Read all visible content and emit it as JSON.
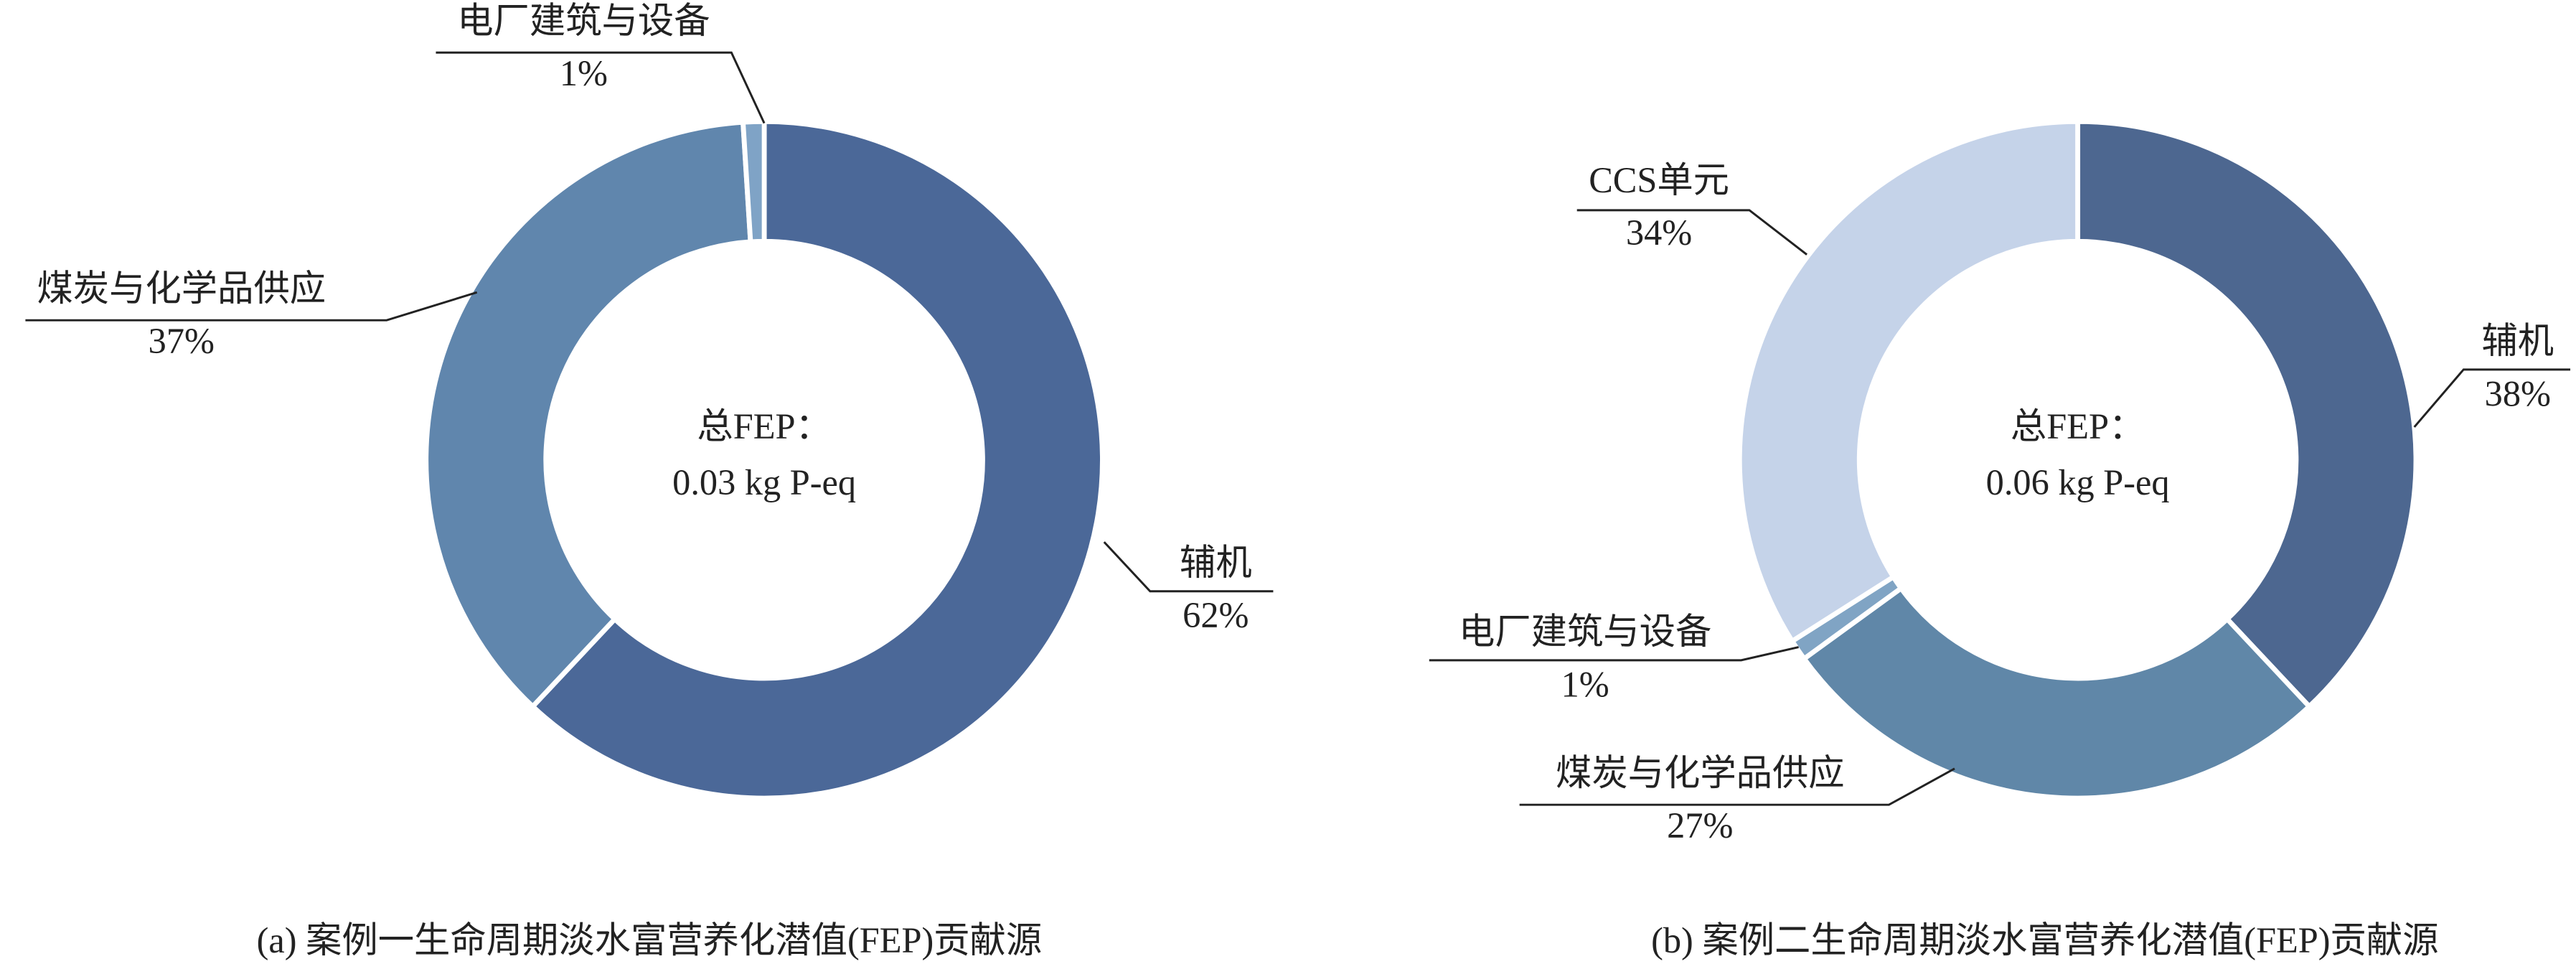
{
  "chart_data": [
    {
      "type": "pie",
      "title": "(a) 案例一生命周期淡水富营养化潜值(FEP)贡献源",
      "center_label": "总FEP：",
      "center_value": "0.03 kg P-eq",
      "categories": [
        "辅机",
        "煤炭与化学品供应",
        "电厂建筑与设备"
      ],
      "values": [
        62,
        37,
        1
      ],
      "value_labels": [
        "62%",
        "37%",
        "1%"
      ],
      "colors": [
        "#4b6898",
        "#6086ad",
        "#7fa3c6"
      ]
    },
    {
      "type": "pie",
      "title": "(b) 案例二生命周期淡水富营养化潜值(FEP)贡献源",
      "center_label": "总FEP：",
      "center_value": "0.06 kg P-eq",
      "categories": [
        "辅机",
        "煤炭与化学品供应",
        "电厂建筑与设备",
        "CCS单元"
      ],
      "values": [
        38,
        27,
        1,
        34
      ],
      "value_labels": [
        "38%",
        "27%",
        "1%",
        "34%"
      ],
      "colors": [
        "#4d6790",
        "#6087a8",
        "#80a4c4",
        "#c5d3e9"
      ]
    }
  ]
}
